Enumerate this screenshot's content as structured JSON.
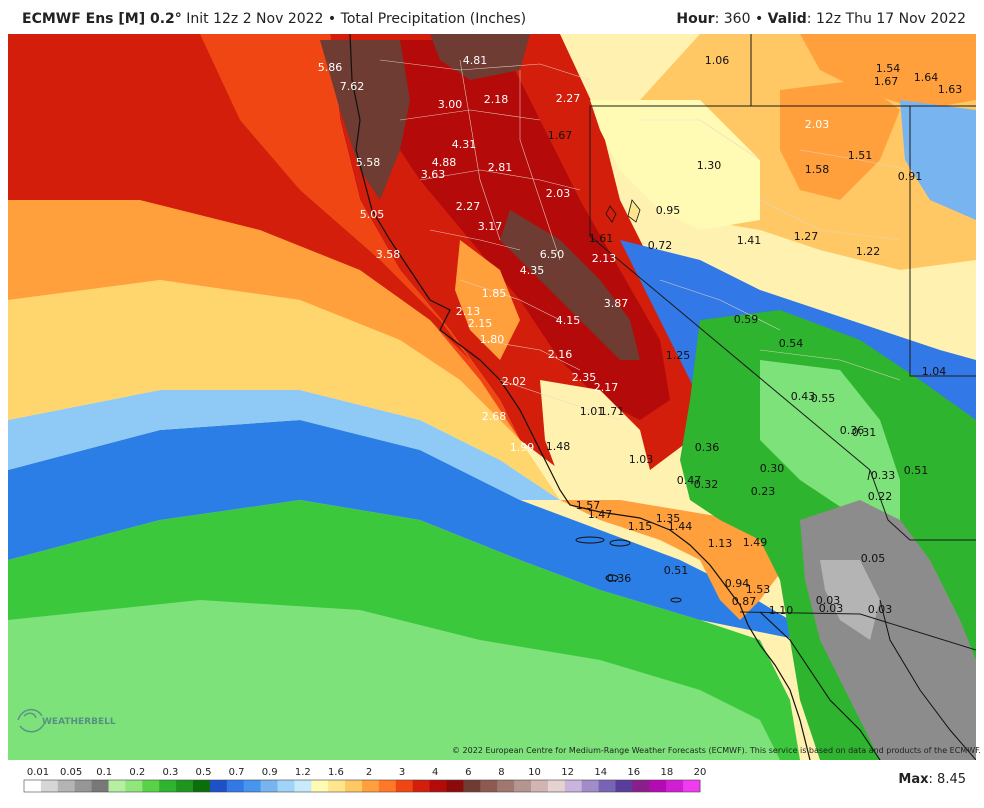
{
  "header": {
    "model": "ECMWF Ens [M] 0.2",
    "init": "Init 12z 2 Nov 2022",
    "product": "Total Precipitation (Inches)",
    "hour_label": "Hour",
    "hour_value": "360",
    "valid_label": "Valid",
    "valid_value": "12z Thu 17 Nov 2022"
  },
  "copyright": "© 2022 European Centre for Medium-Range Weather Forecasts (ECMWF). This service is based on data and products of the ECMWF.",
  "logo": "WEATHERBELL",
  "max": {
    "label": "Max",
    "value": "8.45"
  },
  "legend": {
    "ticks": [
      "0.01",
      "0.05",
      "0.1",
      "0.2",
      "0.3",
      "0.5",
      "0.7",
      "0.9",
      "1.2",
      "1.6",
      "2",
      "3",
      "4",
      "6",
      "8",
      "10",
      "12",
      "14",
      "16",
      "18",
      "20"
    ],
    "colors": [
      "#ffffff",
      "#d6d6d6",
      "#b4b4b4",
      "#969696",
      "#787878",
      "#b4f0a0",
      "#90e67a",
      "#5ad248",
      "#2eb42e",
      "#1e961e",
      "#0a6e0a",
      "#1e50c8",
      "#3278e6",
      "#4696f0",
      "#78b4f0",
      "#a0d2fa",
      "#c8eafa",
      "#fffab4",
      "#ffe68c",
      "#ffc864",
      "#ffa03c",
      "#ff7828",
      "#f04614",
      "#d21e0a",
      "#b40a0a",
      "#8c0a0a",
      "#6e3c32",
      "#8c5a50",
      "#a07870",
      "#b49690",
      "#d2b4b0",
      "#e6d2d0",
      "#c8b4dc",
      "#a08cc8",
      "#7864b4",
      "#5a3c9c",
      "#8c1e8c",
      "#b40ab4",
      "#d21ed2",
      "#f03cf0"
    ]
  },
  "precip_labels": [
    {
      "text": "5.86",
      "lx": 330,
      "ly": 67,
      "tone": "light"
    },
    {
      "text": "7.62",
      "lx": 352,
      "ly": 86,
      "tone": "light"
    },
    {
      "text": "4.81",
      "lx": 475,
      "ly": 60,
      "tone": "light"
    },
    {
      "text": "3.00",
      "lx": 450,
      "ly": 104,
      "tone": "light"
    },
    {
      "text": "2.18",
      "lx": 496,
      "ly": 99,
      "tone": "light"
    },
    {
      "text": "2.27",
      "lx": 568,
      "ly": 98,
      "tone": "light"
    },
    {
      "text": "1.67",
      "lx": 560,
      "ly": 135,
      "tone": "dark"
    },
    {
      "text": "5.58",
      "lx": 368,
      "ly": 162,
      "tone": "light"
    },
    {
      "text": "4.31",
      "lx": 464,
      "ly": 144,
      "tone": "light"
    },
    {
      "text": "4.88",
      "lx": 444,
      "ly": 162,
      "tone": "light"
    },
    {
      "text": "3.63",
      "lx": 433,
      "ly": 174,
      "tone": "light"
    },
    {
      "text": "2.81",
      "lx": 500,
      "ly": 167,
      "tone": "light"
    },
    {
      "text": "2.03",
      "lx": 558,
      "ly": 193,
      "tone": "light"
    },
    {
      "text": "5.05",
      "lx": 372,
      "ly": 214,
      "tone": "light"
    },
    {
      "text": "2.27",
      "lx": 468,
      "ly": 206,
      "tone": "light"
    },
    {
      "text": "3.17",
      "lx": 490,
      "ly": 226,
      "tone": "light"
    },
    {
      "text": "6.50",
      "lx": 552,
      "ly": 254,
      "tone": "light"
    },
    {
      "text": "3.58",
      "lx": 388,
      "ly": 254,
      "tone": "light"
    },
    {
      "text": "4.35",
      "lx": 532,
      "ly": 270,
      "tone": "light"
    },
    {
      "text": "1.61",
      "lx": 601,
      "ly": 238,
      "tone": "dark"
    },
    {
      "text": "2.13",
      "lx": 604,
      "ly": 258,
      "tone": "light"
    },
    {
      "text": "1.85",
      "lx": 494,
      "ly": 293,
      "tone": "light"
    },
    {
      "text": "3.87",
      "lx": 616,
      "ly": 303,
      "tone": "light"
    },
    {
      "text": "2.13",
      "lx": 468,
      "ly": 311,
      "tone": "light"
    },
    {
      "text": "2.15",
      "lx": 480,
      "ly": 323,
      "tone": "light"
    },
    {
      "text": "4.15",
      "lx": 568,
      "ly": 320,
      "tone": "light"
    },
    {
      "text": "1.80",
      "lx": 492,
      "ly": 339,
      "tone": "light"
    },
    {
      "text": "2.16",
      "lx": 560,
      "ly": 354,
      "tone": "light"
    },
    {
      "text": "1.25",
      "lx": 678,
      "ly": 355,
      "tone": "dark"
    },
    {
      "text": "2.35",
      "lx": 584,
      "ly": 377,
      "tone": "light"
    },
    {
      "text": "2.17",
      "lx": 606,
      "ly": 387,
      "tone": "light"
    },
    {
      "text": "2.02",
      "lx": 514,
      "ly": 381,
      "tone": "light"
    },
    {
      "text": "1.01",
      "lx": 592,
      "ly": 411,
      "tone": "dark"
    },
    {
      "text": "1.71",
      "lx": 612,
      "ly": 411,
      "tone": "dark"
    },
    {
      "text": "2.68",
      "lx": 494,
      "ly": 416,
      "tone": "light"
    },
    {
      "text": "1.99",
      "lx": 522,
      "ly": 447,
      "tone": "light"
    },
    {
      "text": "1.48",
      "lx": 558,
      "ly": 446,
      "tone": "dark"
    },
    {
      "text": "1.03",
      "lx": 641,
      "ly": 459,
      "tone": "dark"
    },
    {
      "text": "1.06",
      "lx": 717,
      "ly": 60,
      "tone": "dark"
    },
    {
      "text": "1.30",
      "lx": 709,
      "ly": 165,
      "tone": "dark"
    },
    {
      "text": "0.95",
      "lx": 668,
      "ly": 210,
      "tone": "dark"
    },
    {
      "text": "0.72",
      "lx": 660,
      "ly": 245,
      "tone": "dark"
    },
    {
      "text": "1.41",
      "lx": 749,
      "ly": 240,
      "tone": "dark"
    },
    {
      "text": "1.27",
      "lx": 806,
      "ly": 236,
      "tone": "dark"
    },
    {
      "text": "1.22",
      "lx": 868,
      "ly": 251,
      "tone": "dark"
    },
    {
      "text": "1.54",
      "lx": 888,
      "ly": 68,
      "tone": "dark"
    },
    {
      "text": "1.67",
      "lx": 886,
      "ly": 81,
      "tone": "dark"
    },
    {
      "text": "1.64",
      "lx": 926,
      "ly": 77,
      "tone": "dark"
    },
    {
      "text": "1.63",
      "lx": 950,
      "ly": 89,
      "tone": "dark"
    },
    {
      "text": "2.03",
      "lx": 817,
      "ly": 124,
      "tone": "light"
    },
    {
      "text": "1.51",
      "lx": 860,
      "ly": 155,
      "tone": "dark"
    },
    {
      "text": "1.58",
      "lx": 817,
      "ly": 169,
      "tone": "dark"
    },
    {
      "text": "0.91",
      "lx": 910,
      "ly": 176,
      "tone": "dark"
    },
    {
      "text": "0.59",
      "lx": 746,
      "ly": 319,
      "tone": "dark"
    },
    {
      "text": "0.54",
      "lx": 791,
      "ly": 343,
      "tone": "dark"
    },
    {
      "text": "1.04",
      "lx": 934,
      "ly": 371,
      "tone": "dark"
    },
    {
      "text": "0.43",
      "lx": 803,
      "ly": 396,
      "tone": "dark"
    },
    {
      "text": "0.55",
      "lx": 823,
      "ly": 398,
      "tone": "dark"
    },
    {
      "text": "0.36",
      "lx": 852,
      "ly": 430,
      "tone": "dark"
    },
    {
      "text": "0.31",
      "lx": 864,
      "ly": 432,
      "tone": "dark"
    },
    {
      "text": "0.36",
      "lx": 707,
      "ly": 447,
      "tone": "dark"
    },
    {
      "text": "0.30",
      "lx": 772,
      "ly": 468,
      "tone": "dark"
    },
    {
      "text": "0.51",
      "lx": 916,
      "ly": 470,
      "tone": "dark"
    },
    {
      "text": "0.33",
      "lx": 883,
      "ly": 475,
      "tone": "dark"
    },
    {
      "text": "0.47",
      "lx": 689,
      "ly": 480,
      "tone": "dark"
    },
    {
      "text": "0.32",
      "lx": 706,
      "ly": 484,
      "tone": "dark"
    },
    {
      "text": "0.23",
      "lx": 763,
      "ly": 491,
      "tone": "dark"
    },
    {
      "text": "0.22",
      "lx": 880,
      "ly": 496,
      "tone": "dark"
    },
    {
      "text": "1.57",
      "lx": 588,
      "ly": 505,
      "tone": "dark"
    },
    {
      "text": "1.47",
      "lx": 600,
      "ly": 514,
      "tone": "dark"
    },
    {
      "text": "1.35",
      "lx": 668,
      "ly": 518,
      "tone": "dark"
    },
    {
      "text": "1.15",
      "lx": 640,
      "ly": 526,
      "tone": "dark"
    },
    {
      "text": "1.44",
      "lx": 680,
      "ly": 526,
      "tone": "dark"
    },
    {
      "text": "1.13",
      "lx": 720,
      "ly": 543,
      "tone": "dark"
    },
    {
      "text": "1.49",
      "lx": 755,
      "ly": 542,
      "tone": "dark"
    },
    {
      "text": "0.05",
      "lx": 873,
      "ly": 558,
      "tone": "dark"
    },
    {
      "text": "0.51",
      "lx": 676,
      "ly": 570,
      "tone": "dark"
    },
    {
      "text": "0.36",
      "lx": 619,
      "ly": 578,
      "tone": "dark"
    },
    {
      "text": "0.94",
      "lx": 737,
      "ly": 583,
      "tone": "dark"
    },
    {
      "text": "1.53",
      "lx": 758,
      "ly": 589,
      "tone": "dark"
    },
    {
      "text": "0.87",
      "lx": 744,
      "ly": 601,
      "tone": "dark"
    },
    {
      "text": "0.03",
      "lx": 828,
      "ly": 600,
      "tone": "dark"
    },
    {
      "text": "0.03",
      "lx": 831,
      "ly": 608,
      "tone": "dark"
    },
    {
      "text": "0.03",
      "lx": 880,
      "ly": 609,
      "tone": "dark"
    },
    {
      "text": "1.10",
      "lx": 781,
      "ly": 610,
      "tone": "dark"
    }
  ]
}
